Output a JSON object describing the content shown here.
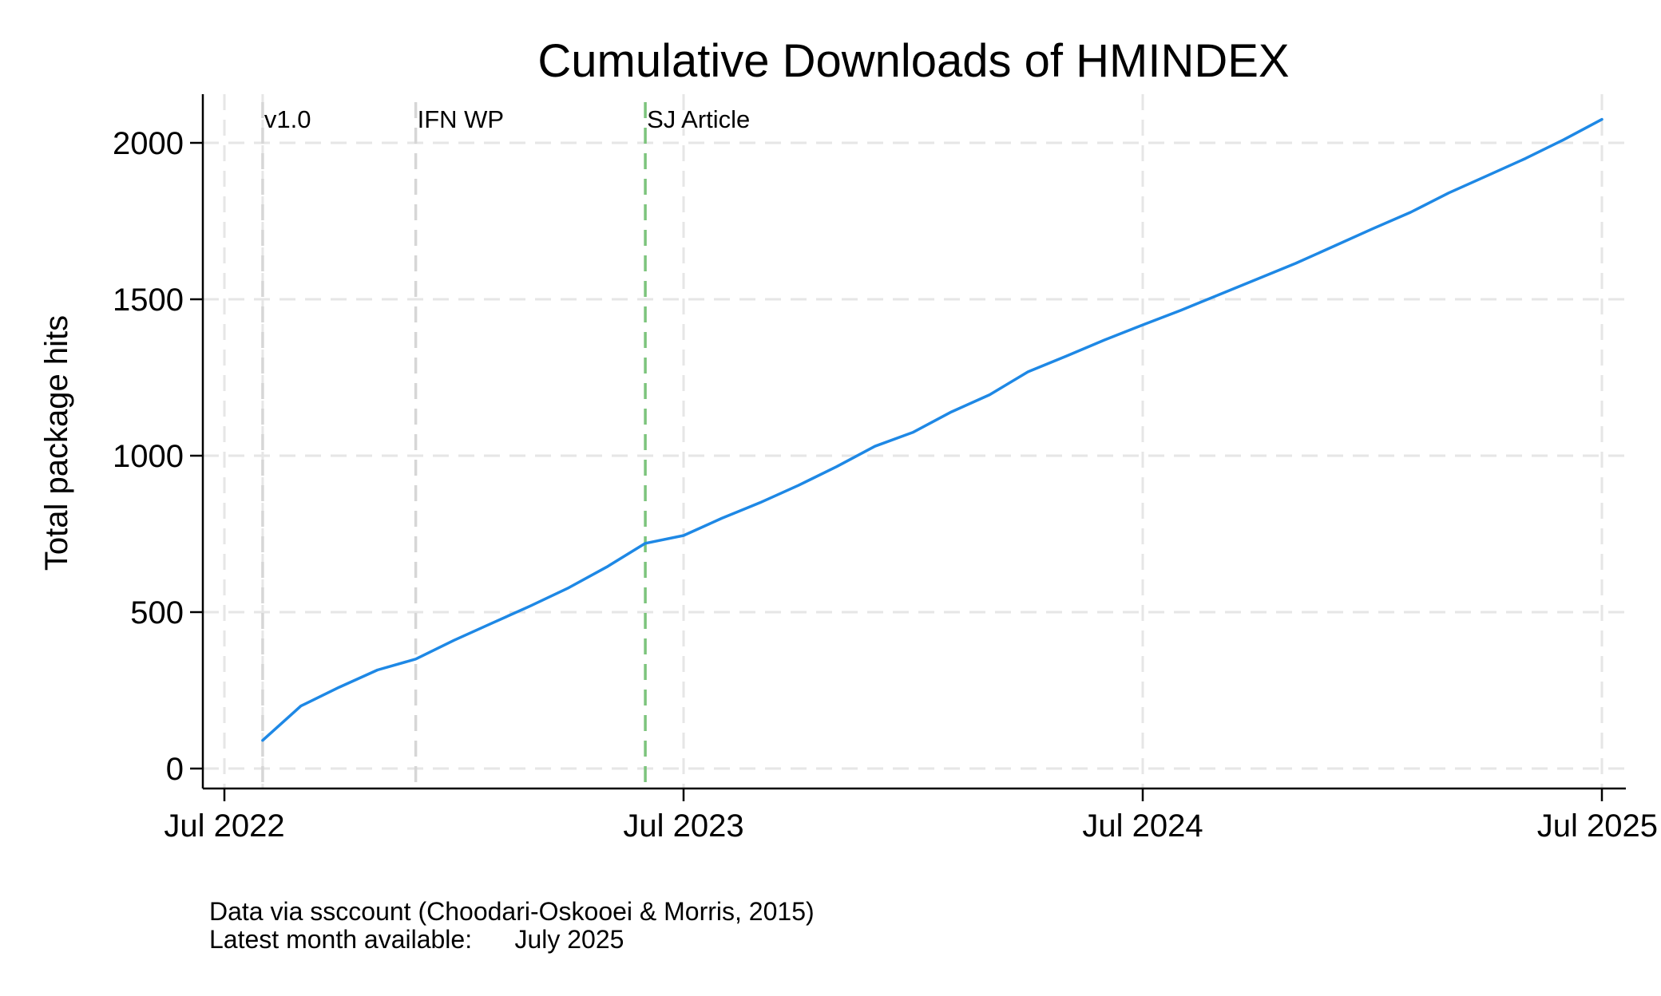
{
  "chart_data": {
    "type": "line",
    "title": "Cumulative Downloads of HMINDEX",
    "xlabel": "",
    "ylabel": "Total package hits",
    "x_unit": "month",
    "xlim": [
      "2022-07",
      "2025-07"
    ],
    "ylim": [
      -65,
      2150
    ],
    "x_ticks": [
      {
        "value": "2022-07",
        "label": "Jul 2022"
      },
      {
        "value": "2023-07",
        "label": "Jul 2023"
      },
      {
        "value": "2024-07",
        "label": "Jul 2024"
      },
      {
        "value": "2025-07",
        "label": "Jul 2025"
      }
    ],
    "y_ticks": [
      {
        "value": 0,
        "label": "0"
      },
      {
        "value": 500,
        "label": "500"
      },
      {
        "value": 1000,
        "label": "1000"
      },
      {
        "value": 1500,
        "label": "1500"
      },
      {
        "value": 2000,
        "label": "2000"
      }
    ],
    "x_grid_values": [
      "2022-07",
      "2022-08",
      "2023-07",
      "2024-07",
      "2025-07"
    ],
    "grid": true,
    "legend": "none",
    "series": [
      {
        "color": "#1e88e5",
        "points": [
          {
            "x": "2022-08",
            "y": 90
          },
          {
            "x": "2022-09",
            "y": 200
          },
          {
            "x": "2022-10",
            "y": 260
          },
          {
            "x": "2022-11",
            "y": 315
          },
          {
            "x": "2022-12",
            "y": 350
          },
          {
            "x": "2023-01",
            "y": 410
          },
          {
            "x": "2023-02",
            "y": 465
          },
          {
            "x": "2023-03",
            "y": 520
          },
          {
            "x": "2023-04",
            "y": 578
          },
          {
            "x": "2023-05",
            "y": 645
          },
          {
            "x": "2023-06",
            "y": 720
          },
          {
            "x": "2023-07",
            "y": 745
          },
          {
            "x": "2023-08",
            "y": 800
          },
          {
            "x": "2023-09",
            "y": 850
          },
          {
            "x": "2023-10",
            "y": 905
          },
          {
            "x": "2023-11",
            "y": 965
          },
          {
            "x": "2023-12",
            "y": 1030
          },
          {
            "x": "2024-01",
            "y": 1075
          },
          {
            "x": "2024-02",
            "y": 1140
          },
          {
            "x": "2024-03",
            "y": 1195
          },
          {
            "x": "2024-04",
            "y": 1268
          },
          {
            "x": "2024-05",
            "y": 1318
          },
          {
            "x": "2024-06",
            "y": 1370
          },
          {
            "x": "2024-07",
            "y": 1418
          },
          {
            "x": "2024-08",
            "y": 1465
          },
          {
            "x": "2024-09",
            "y": 1515
          },
          {
            "x": "2024-10",
            "y": 1565
          },
          {
            "x": "2024-11",
            "y": 1615
          },
          {
            "x": "2024-12",
            "y": 1670
          },
          {
            "x": "2025-01",
            "y": 1725
          },
          {
            "x": "2025-02",
            "y": 1778
          },
          {
            "x": "2025-03",
            "y": 1840
          },
          {
            "x": "2025-04",
            "y": 1895
          },
          {
            "x": "2025-05",
            "y": 1950
          },
          {
            "x": "2025-06",
            "y": 2010
          },
          {
            "x": "2025-07",
            "y": 2075
          }
        ]
      }
    ],
    "annotations": [
      {
        "label": "v1.0",
        "x": "2022-08",
        "color": "#d6d6d6"
      },
      {
        "label": "IFN WP",
        "x": "2022-12",
        "color": "#d6d6d6"
      },
      {
        "label": "SJ Article",
        "x": "2023-06",
        "color": "#7cc47c"
      }
    ],
    "notes": [
      "Data via ssccount (Choodari-Oskooei & Morris, 2015)",
      "Latest month available:      July 2025"
    ]
  }
}
